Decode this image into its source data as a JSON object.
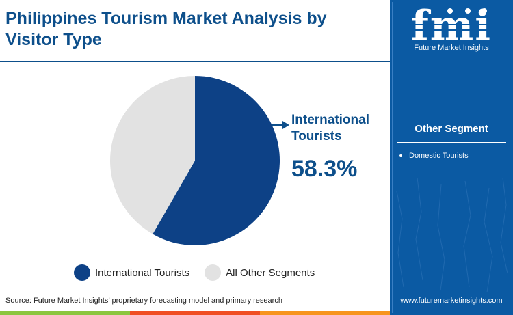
{
  "header": {
    "title": "Philippines Tourism Market Analysis by Visitor Type"
  },
  "chart_data": {
    "type": "pie",
    "categories": [
      "International Tourists",
      "All Other Segments"
    ],
    "values": [
      58.3,
      41.7
    ],
    "colors": [
      "#0d4186",
      "#e2e2e2"
    ],
    "legend_position": "bottom",
    "start_angle_deg": 0
  },
  "callout": {
    "label": "International Tourists",
    "value": "58.3%"
  },
  "legend": {
    "items": [
      {
        "label": "International Tourists",
        "color": "#0d4186"
      },
      {
        "label": "All Other Segments",
        "color": "#e2e2e2"
      }
    ]
  },
  "source": "Source: Future Market Insights’ proprietary forecasting model and primary research",
  "sidebar": {
    "logo_text": "fmi",
    "logo_subtitle": "Future Market Insights",
    "other_segment_title": "Other Segment",
    "other_segments": [
      "Domestic Tourists"
    ],
    "website": "www.futuremarketinsights.com",
    "background_color": "#0b5aa3"
  },
  "colors": {
    "primary": "#0d4f8b",
    "bottom_bar": [
      "#8cc63f",
      "#f04e23",
      "#f7941d"
    ]
  }
}
